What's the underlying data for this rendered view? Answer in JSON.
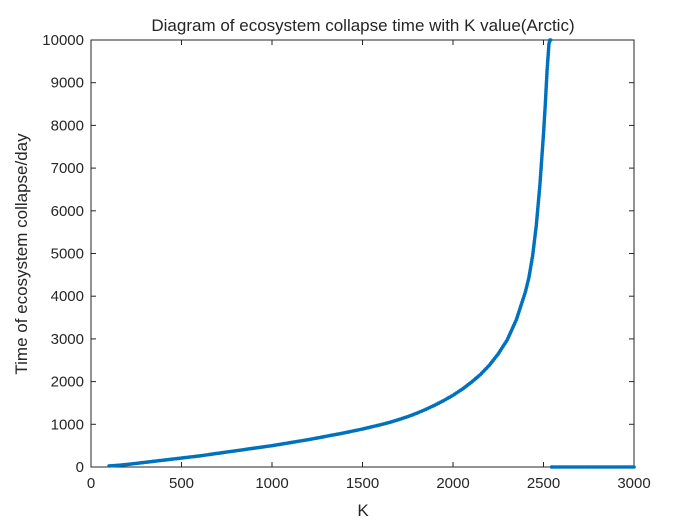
{
  "chart_data": {
    "type": "scatter",
    "title": "Diagram of ecosystem collapse time with K value(Arctic)",
    "xlabel": "K",
    "ylabel": "Time of ecosystem collapse/day",
    "xlim": [
      0,
      3000
    ],
    "ylim": [
      0,
      10000
    ],
    "xticks": [
      "0",
      "500",
      "1000",
      "1500",
      "2000",
      "2500",
      "3000"
    ],
    "yticks": [
      "0",
      "1000",
      "2000",
      "3000",
      "4000",
      "5000",
      "6000",
      "7000",
      "8000",
      "9000",
      "10000"
    ],
    "grid": false,
    "color": "#0072BD",
    "series": [
      {
        "x": [
          100,
          150,
          200,
          250,
          300,
          350,
          400,
          450,
          500,
          550,
          600,
          650,
          700,
          750,
          800,
          850,
          900,
          950,
          1000,
          1050,
          1100,
          1150,
          1200,
          1250,
          1300,
          1350,
          1400,
          1450,
          1500,
          1550,
          1600,
          1650,
          1700,
          1750,
          1800,
          1850,
          1900,
          1950,
          2000,
          2050,
          2100,
          2150,
          2200,
          2250,
          2300,
          2350,
          2400,
          2420,
          2440,
          2460,
          2480,
          2490,
          2500,
          2510,
          2520,
          2525,
          2530,
          2535,
          2540,
          2545,
          2550,
          2600,
          2650,
          2700,
          2750,
          2800,
          2850,
          2900,
          2950,
          3000
        ],
        "y": [
          25,
          40,
          60,
          85,
          110,
          135,
          160,
          185,
          210,
          235,
          260,
          290,
          320,
          350,
          380,
          410,
          440,
          470,
          500,
          535,
          570,
          605,
          640,
          680,
          720,
          760,
          800,
          845,
          890,
          940,
          990,
          1045,
          1110,
          1180,
          1260,
          1350,
          1450,
          1560,
          1680,
          1820,
          1980,
          2160,
          2380,
          2650,
          2980,
          3450,
          4100,
          4450,
          4950,
          5650,
          6600,
          7200,
          7800,
          8500,
          9300,
          9600,
          9900,
          10000,
          10000,
          0,
          0,
          0,
          0,
          0,
          0,
          0,
          0,
          0,
          0,
          0
        ]
      }
    ]
  }
}
